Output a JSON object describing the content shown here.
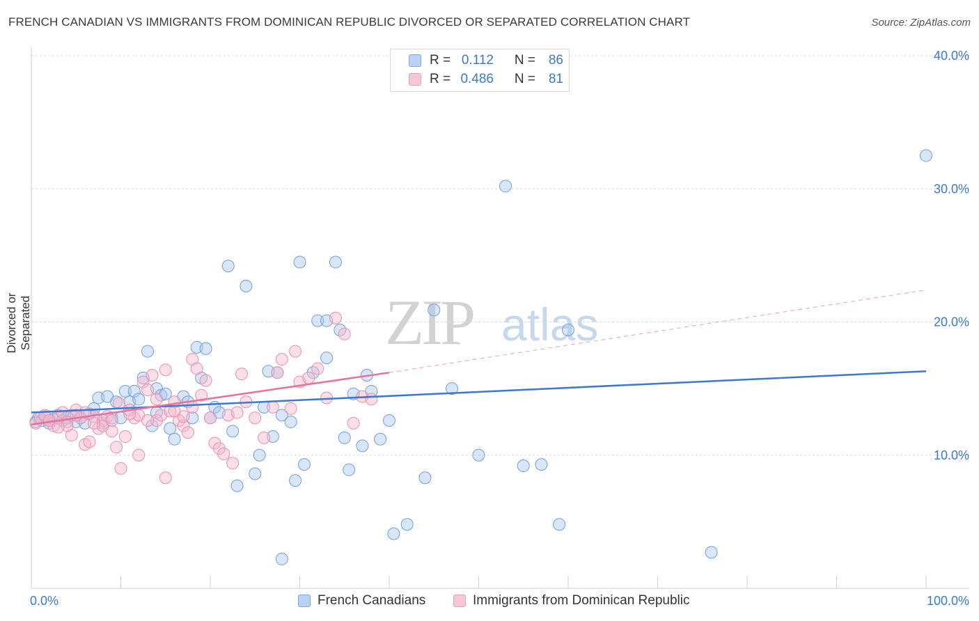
{
  "title": "FRENCH CANADIAN VS IMMIGRANTS FROM DOMINICAN REPUBLIC DIVORCED OR SEPARATED CORRELATION CHART",
  "source": "Source: ZipAtlas.com",
  "watermark": {
    "zip": "ZIP",
    "atlas": "atlas"
  },
  "colors": {
    "blue": "#3a78d4",
    "blue_fill": "#a9c8f0",
    "pink": "#e8709a",
    "pink_fill": "#f5b8cc",
    "grid": "#d8d8d8"
  },
  "legend": {
    "rows": [
      {
        "r_label": "R =",
        "r_value": "0.112",
        "n_label": "N =",
        "n_value": "86"
      },
      {
        "r_label": "R =",
        "r_value": "0.486",
        "n_label": "N =",
        "n_value": "81"
      }
    ]
  },
  "chart_data": {
    "type": "scatter",
    "title": "FRENCH CANADIAN VS IMMIGRANTS FROM DOMINICAN REPUBLIC DIVORCED OR SEPARATED CORRELATION CHART",
    "xlabel": "",
    "ylabel": "Divorced or Separated",
    "xlim": [
      0,
      100
    ],
    "ylim": [
      0,
      40
    ],
    "x_tick_labels": [
      "0.0%",
      "100.0%"
    ],
    "y_ticks": [
      10,
      20,
      30,
      40
    ],
    "y_tick_labels": [
      "10.0%",
      "20.0%",
      "30.0%",
      "40.0%"
    ],
    "grid": true,
    "legend_position": "top-center",
    "series": [
      {
        "name": "French Canadians",
        "color": "#3a78d4",
        "trend": {
          "x": [
            0,
            100
          ],
          "y": [
            13.2,
            16.3
          ]
        },
        "points": [
          [
            0.5,
            12.5
          ],
          [
            0.8,
            12.8
          ],
          [
            1.2,
            12.6
          ],
          [
            1.5,
            12.9
          ],
          [
            2,
            12.4
          ],
          [
            2.5,
            12.7
          ],
          [
            3,
            13
          ],
          [
            3.5,
            12.6
          ],
          [
            4,
            12.8
          ],
          [
            4.5,
            13
          ],
          [
            5,
            12.5
          ],
          [
            5.5,
            12.8
          ],
          [
            6,
            12.4
          ],
          [
            6.5,
            13.1
          ],
          [
            7,
            13.5
          ],
          [
            7.5,
            14.3
          ],
          [
            8,
            12.4
          ],
          [
            8.5,
            14.4
          ],
          [
            9,
            12.8
          ],
          [
            9.5,
            14
          ],
          [
            10,
            12.8
          ],
          [
            10.5,
            14.8
          ],
          [
            11,
            14
          ],
          [
            11.5,
            14.8
          ],
          [
            12,
            14.2
          ],
          [
            12.5,
            15.8
          ],
          [
            13,
            17.8
          ],
          [
            13.5,
            12.2
          ],
          [
            14,
            15
          ],
          [
            14.5,
            14.5
          ],
          [
            15,
            14.6
          ],
          [
            15.5,
            12
          ],
          [
            16,
            11.2
          ],
          [
            17,
            14.4
          ],
          [
            17.5,
            14
          ],
          [
            18,
            12.8
          ],
          [
            18.5,
            18.1
          ],
          [
            19,
            15.8
          ],
          [
            19.5,
            18
          ],
          [
            20,
            12.8
          ],
          [
            20.5,
            13.6
          ],
          [
            21,
            13.2
          ],
          [
            22,
            24.2
          ],
          [
            22.5,
            11.8
          ],
          [
            23,
            7.7
          ],
          [
            24,
            22.7
          ],
          [
            25,
            8.6
          ],
          [
            25.5,
            10
          ],
          [
            26,
            13.6
          ],
          [
            26.5,
            16.3
          ],
          [
            27,
            11.4
          ],
          [
            27.5,
            16.2
          ],
          [
            28,
            13
          ],
          [
            28,
            2.2
          ],
          [
            29,
            12.5
          ],
          [
            29.5,
            8.1
          ],
          [
            30,
            24.5
          ],
          [
            30.5,
            9.3
          ],
          [
            31.5,
            16.2
          ],
          [
            32,
            20.1
          ],
          [
            33,
            20.1
          ],
          [
            33,
            17.3
          ],
          [
            34,
            24.5
          ],
          [
            34.5,
            19.4
          ],
          [
            35,
            11.3
          ],
          [
            35.5,
            8.9
          ],
          [
            36,
            14.6
          ],
          [
            37,
            10.7
          ],
          [
            37.5,
            16
          ],
          [
            38,
            14.8
          ],
          [
            39,
            11.2
          ],
          [
            40,
            12.6
          ],
          [
            40.5,
            4.1
          ],
          [
            42,
            4.8
          ],
          [
            44,
            8.3
          ],
          [
            45,
            20.9
          ],
          [
            47,
            15
          ],
          [
            50,
            10
          ],
          [
            53,
            30.2
          ],
          [
            55,
            9.2
          ],
          [
            57,
            9.3
          ],
          [
            59,
            4.8
          ],
          [
            60,
            19.4
          ],
          [
            76,
            2.7
          ],
          [
            100,
            32.5
          ],
          [
            14,
            13.2
          ]
        ]
      },
      {
        "name": "Immigrants from Dominican Republic",
        "color": "#e8709a",
        "trend": {
          "x": [
            0,
            40
          ],
          "y": [
            12.3,
            16.2
          ]
        },
        "trend_extension": {
          "x": [
            40,
            100
          ],
          "y": [
            16.2,
            22.4
          ]
        },
        "points": [
          [
            0.5,
            12.4
          ],
          [
            1,
            12.8
          ],
          [
            1.5,
            13
          ],
          [
            2,
            12.6
          ],
          [
            2.5,
            12.2
          ],
          [
            3,
            12.8
          ],
          [
            3.5,
            13.2
          ],
          [
            4,
            12.5
          ],
          [
            4.5,
            11.5
          ],
          [
            5,
            13.4
          ],
          [
            5.5,
            12.8
          ],
          [
            6,
            10.8
          ],
          [
            6.5,
            11
          ],
          [
            7,
            12.9
          ],
          [
            7.5,
            12
          ],
          [
            8,
            12.6
          ],
          [
            8.5,
            12.9
          ],
          [
            9,
            11.8
          ],
          [
            9.5,
            10.6
          ],
          [
            9.8,
            13.9
          ],
          [
            10,
            9
          ],
          [
            10.5,
            11.4
          ],
          [
            11,
            13.4
          ],
          [
            11.5,
            12.8
          ],
          [
            12,
            10
          ],
          [
            12.5,
            15.5
          ],
          [
            13,
            14.9
          ],
          [
            13.5,
            16
          ],
          [
            14,
            12.6
          ],
          [
            14.5,
            13
          ],
          [
            15,
            8.3
          ],
          [
            15.5,
            13.3
          ],
          [
            16,
            14
          ],
          [
            16.5,
            12.6
          ],
          [
            17,
            12.2
          ],
          [
            17.5,
            11.7
          ],
          [
            18,
            17.2
          ],
          [
            18.5,
            16.5
          ],
          [
            19,
            14.5
          ],
          [
            19.5,
            15.6
          ],
          [
            20,
            12.8
          ],
          [
            20.5,
            10.9
          ],
          [
            21,
            10.5
          ],
          [
            21.5,
            10.1
          ],
          [
            22,
            13
          ],
          [
            22.5,
            9.4
          ],
          [
            23,
            13.2
          ],
          [
            23.5,
            16.1
          ],
          [
            24,
            14
          ],
          [
            25,
            12.8
          ],
          [
            26,
            11.3
          ],
          [
            27,
            13.6
          ],
          [
            27.5,
            16.2
          ],
          [
            28,
            17.2
          ],
          [
            29,
            13.5
          ],
          [
            29.5,
            17.8
          ],
          [
            30,
            15.5
          ],
          [
            31,
            15.8
          ],
          [
            32,
            16.5
          ],
          [
            33,
            14.3
          ],
          [
            34,
            20.3
          ],
          [
            35,
            19.1
          ],
          [
            36,
            12.4
          ],
          [
            37,
            14.4
          ],
          [
            38,
            14.2
          ],
          [
            15,
            16.4
          ],
          [
            17,
            12.9
          ],
          [
            18,
            13.6
          ],
          [
            12,
            13
          ],
          [
            4,
            12.2
          ],
          [
            6,
            13.2
          ],
          [
            8,
            12.2
          ],
          [
            2,
            12.6
          ],
          [
            3,
            12.1
          ],
          [
            5,
            13
          ],
          [
            7,
            12.4
          ],
          [
            9,
            12.6
          ],
          [
            11,
            13.1
          ],
          [
            13,
            12.6
          ],
          [
            16,
            13.3
          ],
          [
            14,
            14.2
          ]
        ]
      }
    ]
  },
  "bottom_legend": [
    {
      "label": "French Canadians"
    },
    {
      "label": "Immigrants from Dominican Republic"
    }
  ]
}
